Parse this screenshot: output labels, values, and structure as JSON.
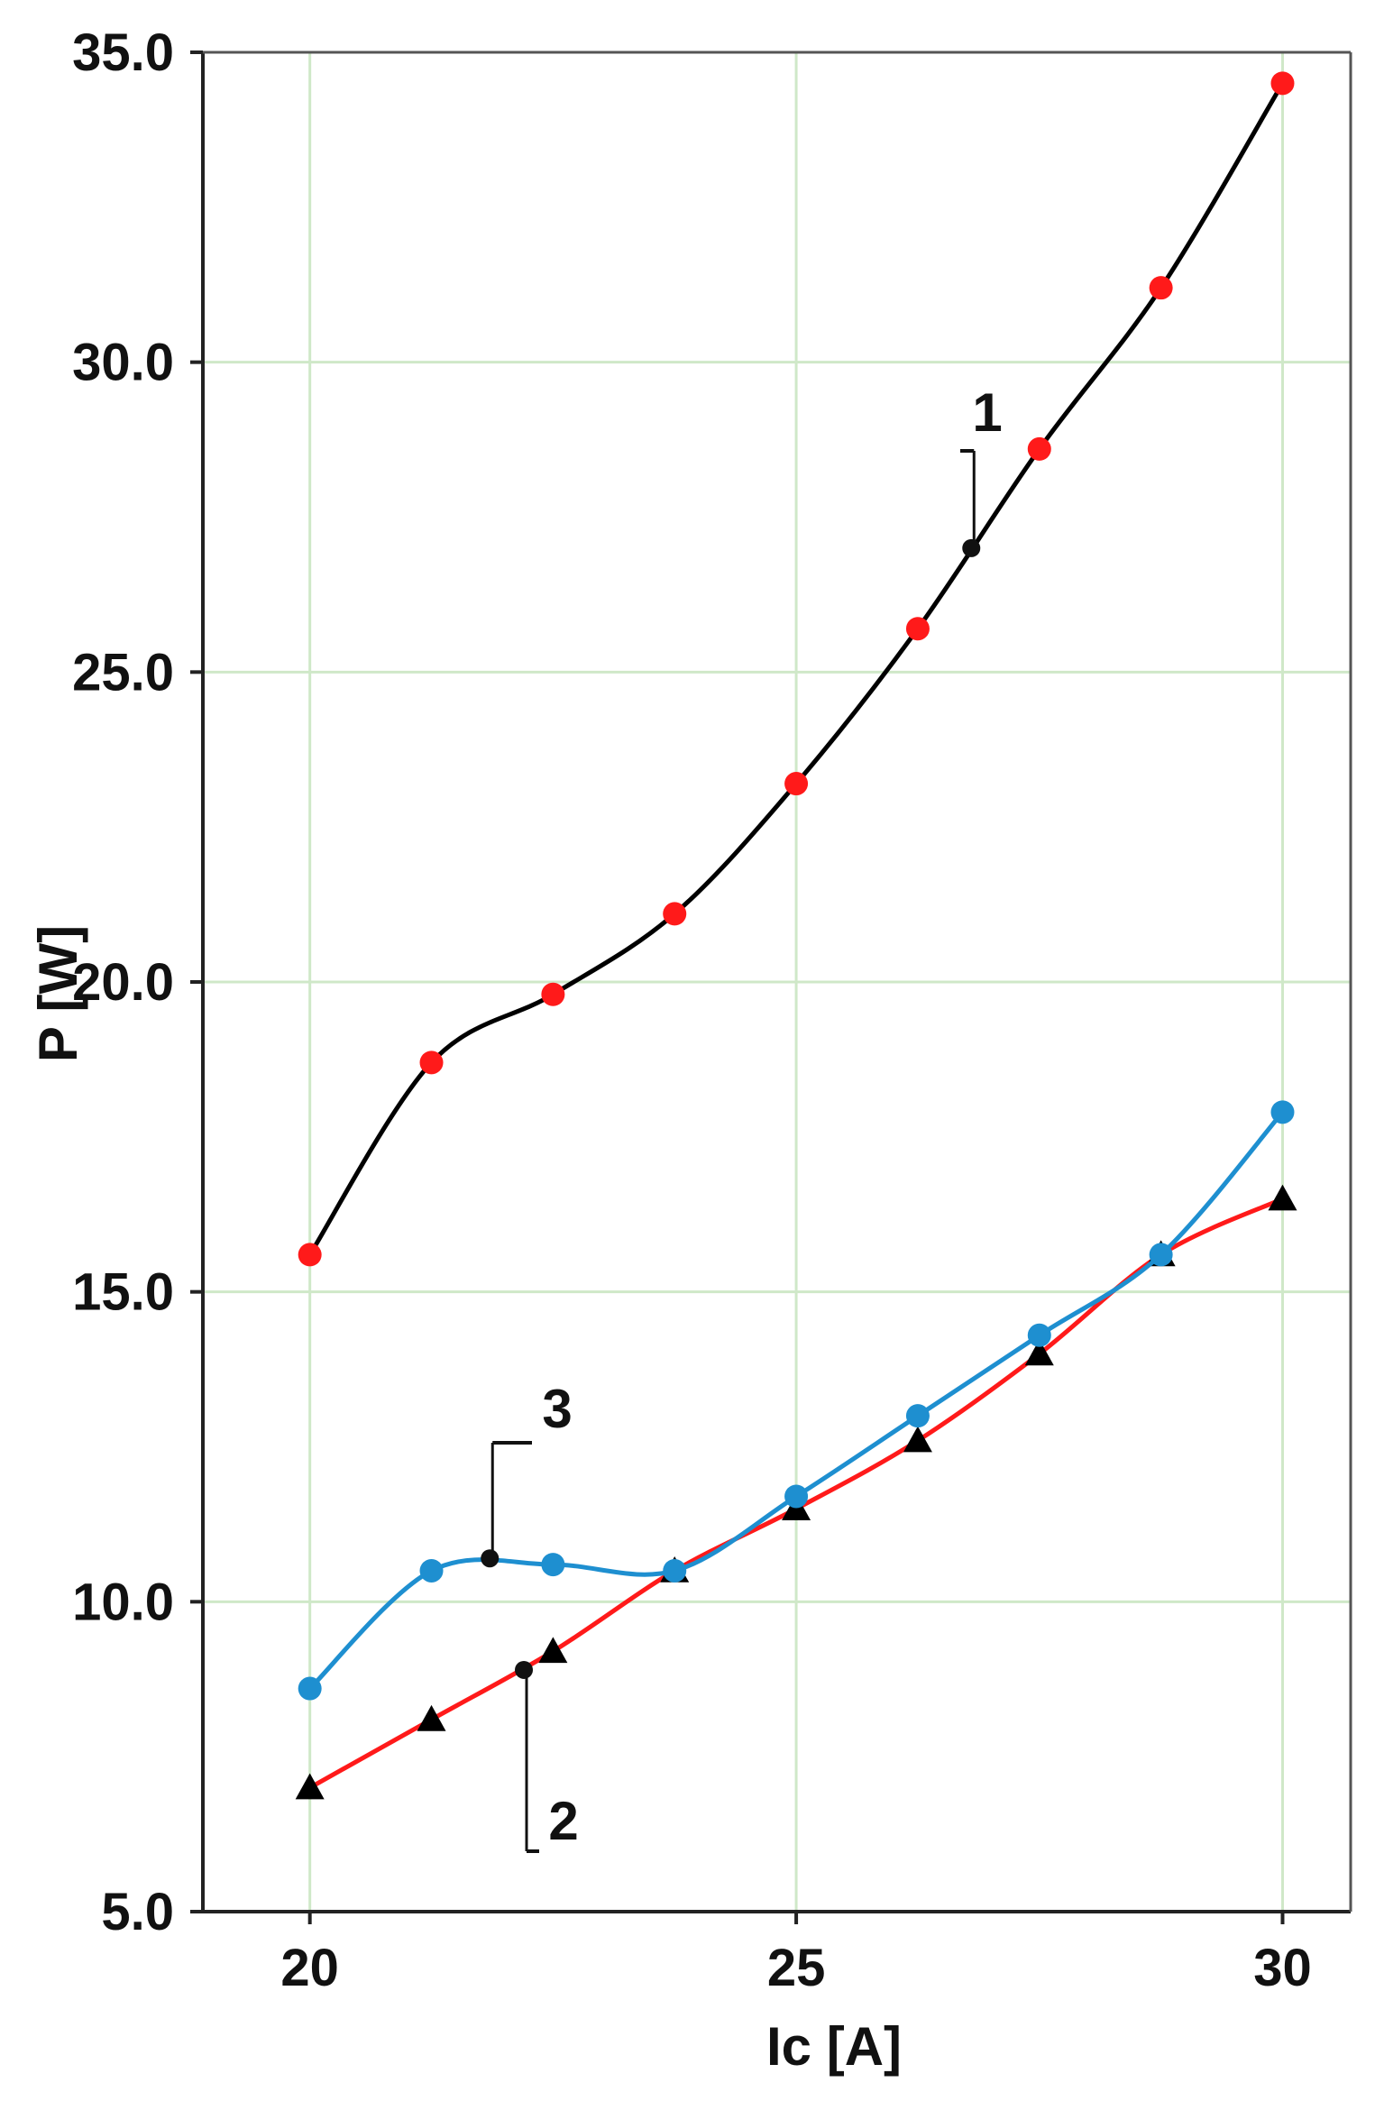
{
  "chart_data": {
    "type": "line",
    "xlabel": "Ic [A]",
    "ylabel": "P [W]",
    "xlim": [
      18.9,
      30.7
    ],
    "ylim": [
      5.0,
      35.0
    ],
    "x_ticks": [
      20,
      25,
      30
    ],
    "x_tick_labels": [
      "20",
      "25",
      "30"
    ],
    "y_ticks": [
      5,
      10,
      15,
      20,
      25,
      30,
      35
    ],
    "y_tick_labels": [
      "5.0",
      "10.0",
      "15.0",
      "20.0",
      "25.0",
      "30.0",
      "35.0"
    ],
    "grid": true,
    "legend": "none",
    "series": [
      {
        "name": "1",
        "line_color": "#000000",
        "marker": "circle",
        "marker_color": "#ff1a1a",
        "x": [
          20.0,
          21.25,
          22.5,
          23.75,
          25.0,
          26.25,
          27.5,
          28.75,
          30.0
        ],
        "y": [
          15.6,
          18.7,
          19.8,
          21.1,
          23.2,
          25.7,
          28.6,
          31.2,
          34.5
        ]
      },
      {
        "name": "2",
        "line_color": "#ff1a1a",
        "marker": "triangle",
        "marker_color": "#000000",
        "x": [
          20.0,
          21.25,
          22.5,
          23.75,
          25.0,
          26.25,
          27.5,
          28.75,
          30.0
        ],
        "y": [
          7.0,
          8.1,
          9.2,
          10.5,
          11.5,
          12.6,
          14.0,
          15.6,
          16.5
        ]
      },
      {
        "name": "3",
        "line_color": "#1e8fd0",
        "marker": "circle",
        "marker_color": "#1e8fd0",
        "x": [
          20.0,
          21.25,
          22.5,
          23.75,
          25.0,
          26.25,
          27.5,
          28.75,
          30.0
        ],
        "y": [
          8.6,
          10.5,
          10.6,
          10.5,
          11.7,
          13.0,
          14.3,
          15.6,
          17.9
        ]
      }
    ],
    "annotations": [
      {
        "text": "1",
        "pointer_x": 26.8,
        "pointer_y": 27.0
      },
      {
        "text": "2",
        "pointer_x": 22.2,
        "pointer_y": 8.9
      },
      {
        "text": "3",
        "pointer_x": 21.85,
        "pointer_y": 10.7
      }
    ]
  }
}
